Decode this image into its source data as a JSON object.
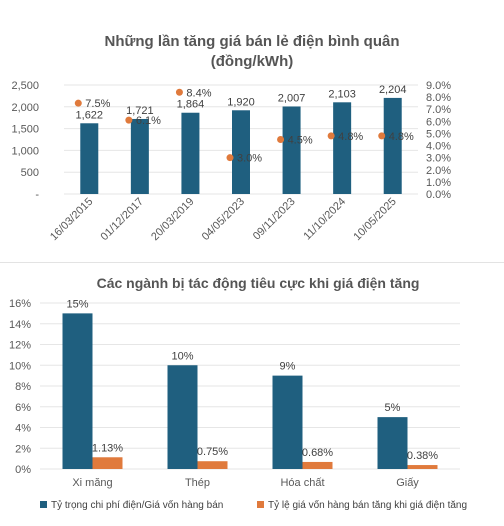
{
  "chart_data": [
    {
      "type": "bar",
      "title_lines": [
        "Những lần tăng giá bán lẻ điện bình quân",
        "(đồng/kWh)"
      ],
      "categories": [
        "16/03/2015",
        "01/12/2017",
        "20/03/2019",
        "04/05/2023",
        "09/11/2023",
        "11/10/2024",
        "10/05/2025"
      ],
      "series": [
        {
          "values": [
            1622,
            1721,
            1864,
            1920,
            2007,
            2103,
            2204
          ],
          "value_labels": [
            "1,622",
            "1,721",
            "1,864",
            "1,920",
            "2,007",
            "2,103",
            "2,204"
          ],
          "color": "#1f5f7f",
          "axis": "left",
          "kind": "bar"
        },
        {
          "values": [
            7.5,
            6.1,
            8.4,
            3.0,
            4.5,
            4.8,
            4.8
          ],
          "value_labels": [
            "7.5%",
            "6.1%",
            "8.4%",
            "3.0%",
            "4.5%",
            "4.8%",
            "4.8%"
          ],
          "color": "#e07a3c",
          "axis": "right",
          "kind": "scatter"
        }
      ],
      "y_left": {
        "min": 0,
        "max": 2500,
        "ticks": [
          0,
          500,
          1000,
          1500,
          2000,
          2500
        ],
        "tick_labels": [
          "-",
          "500",
          "1,000",
          "1,500",
          "2,000",
          "2,500"
        ]
      },
      "y_right": {
        "min": 0,
        "max": 9,
        "ticks": [
          0,
          1,
          2,
          3,
          4,
          5,
          6,
          7,
          8,
          9
        ],
        "tick_labels": [
          "0.0%",
          "1.0%",
          "2.0%",
          "3.0%",
          "4.0%",
          "5.0%",
          "6.0%",
          "7.0%",
          "8.0%",
          "9.0%"
        ]
      },
      "grid": true
    },
    {
      "type": "bar",
      "title": "Các ngành bị tác động tiêu cực khi giá điện tăng",
      "categories": [
        "Xi măng",
        "Thép",
        "Hóa chất",
        "Giấy"
      ],
      "series": [
        {
          "name": "Tỷ trọng chi phí điện/Giá vốn hàng bán",
          "values": [
            15,
            10,
            9,
            5
          ],
          "value_labels": [
            "15%",
            "10%",
            "9%",
            "5%"
          ],
          "color": "#1f5f7f"
        },
        {
          "name": "Tỷ lệ giá vốn hàng bán tăng khi giá điện tăng",
          "values": [
            1.13,
            0.75,
            0.68,
            0.38
          ],
          "value_labels": [
            "1.13%",
            "0.75%",
            "0.68%",
            "0.38%"
          ],
          "color": "#e07a3c"
        }
      ],
      "y": {
        "min": 0,
        "max": 16,
        "ticks": [
          0,
          2,
          4,
          6,
          8,
          10,
          12,
          14,
          16
        ],
        "tick_labels": [
          "0%",
          "2%",
          "4%",
          "6%",
          "8%",
          "10%",
          "12%",
          "14%",
          "16%"
        ]
      },
      "grid": true,
      "legend": "bottom"
    }
  ]
}
